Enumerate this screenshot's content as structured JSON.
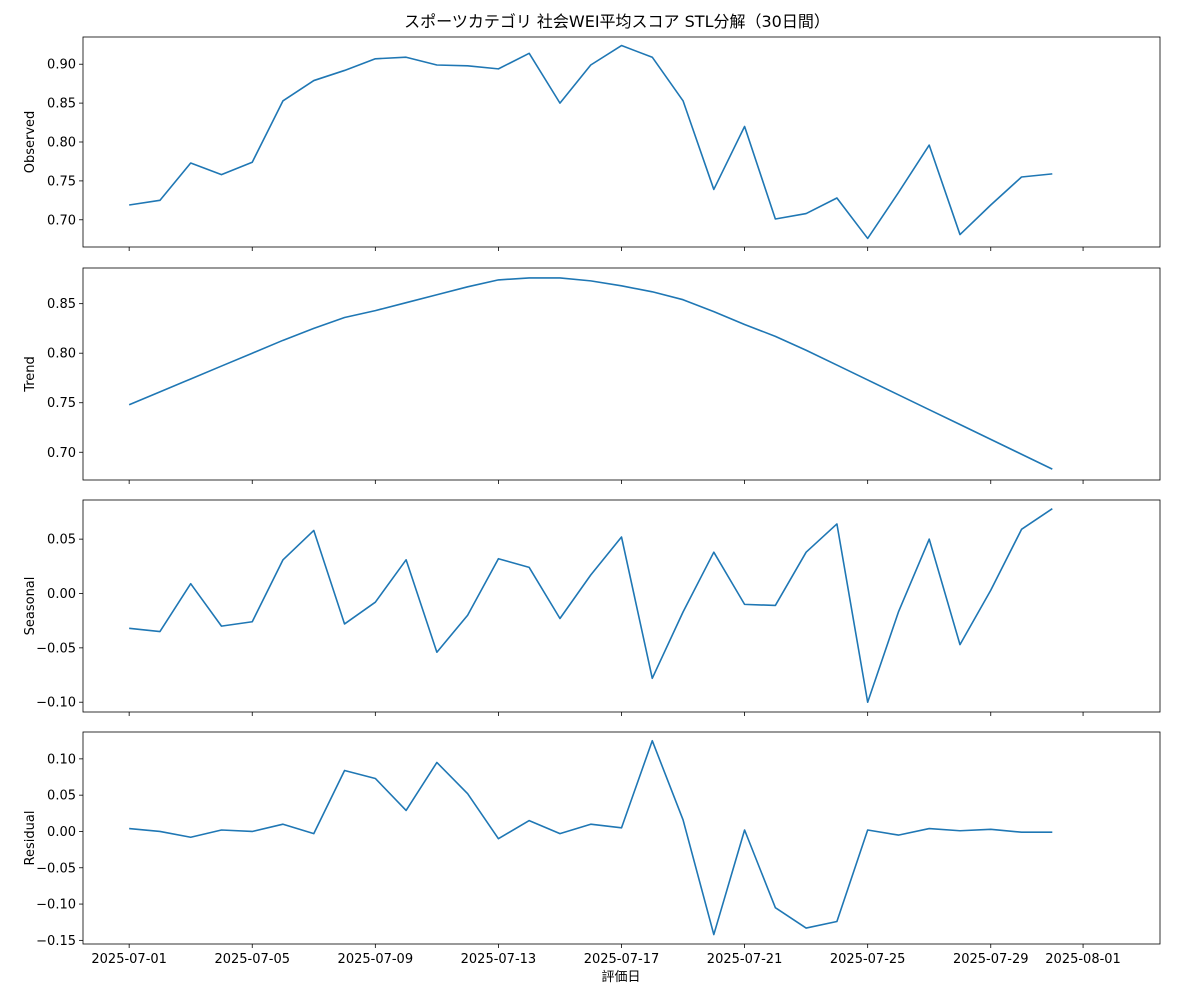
{
  "chart_data": {
    "type": "line",
    "title": "スポーツカテゴリ 社会WEI平均スコア STL分解（30日間）",
    "xlabel": "評価日",
    "color": "#1f77b4",
    "x": [
      "2025-07-01",
      "2025-07-02",
      "2025-07-03",
      "2025-07-04",
      "2025-07-05",
      "2025-07-06",
      "2025-07-07",
      "2025-07-08",
      "2025-07-09",
      "2025-07-10",
      "2025-07-11",
      "2025-07-12",
      "2025-07-13",
      "2025-07-14",
      "2025-07-15",
      "2025-07-16",
      "2025-07-17",
      "2025-07-18",
      "2025-07-19",
      "2025-07-20",
      "2025-07-21",
      "2025-07-22",
      "2025-07-23",
      "2025-07-24",
      "2025-07-25",
      "2025-07-26",
      "2025-07-27",
      "2025-07-28",
      "2025-07-29",
      "2025-07-30",
      "2025-07-31"
    ],
    "xticks": [
      "2025-07-01",
      "2025-07-05",
      "2025-07-09",
      "2025-07-13",
      "2025-07-17",
      "2025-07-21",
      "2025-07-25",
      "2025-07-29",
      "2025-08-01"
    ],
    "xlim": [
      "2025-06-29.5",
      "2025-08-03.5"
    ],
    "panels": [
      {
        "ylabel": "Observed",
        "ylim": [
          0.665,
          0.935
        ],
        "yticks": [
          "0.70",
          "0.75",
          "0.80",
          "0.85",
          "0.90"
        ],
        "values": [
          0.719,
          0.725,
          0.773,
          0.758,
          0.774,
          0.853,
          0.879,
          0.892,
          0.907,
          0.909,
          0.899,
          0.898,
          0.894,
          0.914,
          0.85,
          0.899,
          0.924,
          0.909,
          0.853,
          0.739,
          0.82,
          0.701,
          0.708,
          0.728,
          0.676,
          0.735,
          0.796,
          0.681,
          0.719,
          0.755,
          0.759
        ]
      },
      {
        "ylabel": "Trend",
        "ylim": [
          0.672,
          0.886
        ],
        "yticks": [
          "0.70",
          "0.75",
          "0.80",
          "0.85"
        ],
        "values": [
          0.748,
          0.761,
          0.774,
          0.787,
          0.8,
          0.813,
          0.825,
          0.836,
          0.843,
          0.851,
          0.859,
          0.867,
          0.874,
          0.876,
          0.876,
          0.873,
          0.868,
          0.862,
          0.854,
          0.842,
          0.829,
          0.817,
          0.803,
          0.788,
          0.773,
          0.758,
          0.743,
          0.728,
          0.713,
          0.698,
          0.683
        ]
      },
      {
        "ylabel": "Seasonal",
        "ylim": [
          -0.109,
          0.086
        ],
        "yticks": [
          "−0.10",
          "−0.05",
          "0.00",
          "0.05"
        ],
        "values": [
          -0.032,
          -0.035,
          0.009,
          -0.03,
          -0.026,
          0.031,
          0.058,
          -0.028,
          -0.008,
          0.031,
          -0.054,
          -0.02,
          0.032,
          0.024,
          -0.023,
          0.017,
          0.052,
          -0.078,
          -0.017,
          0.038,
          -0.01,
          -0.011,
          0.038,
          0.064,
          -0.1,
          -0.017,
          0.05,
          -0.047,
          0.003,
          0.059,
          0.078
        ]
      },
      {
        "ylabel": "Residual",
        "ylim": [
          -0.155,
          0.137
        ],
        "yticks": [
          "−0.15",
          "−0.10",
          "−0.05",
          "0.00",
          "0.05",
          "0.10"
        ],
        "values": [
          0.004,
          0.0,
          -0.008,
          0.002,
          0.0,
          0.01,
          -0.003,
          0.084,
          0.073,
          0.029,
          0.095,
          0.052,
          -0.01,
          0.015,
          -0.003,
          0.01,
          0.005,
          0.125,
          0.016,
          -0.142,
          0.002,
          -0.105,
          -0.133,
          -0.124,
          0.002,
          -0.005,
          0.004,
          0.001,
          0.003,
          -0.001,
          -0.001
        ]
      }
    ]
  }
}
